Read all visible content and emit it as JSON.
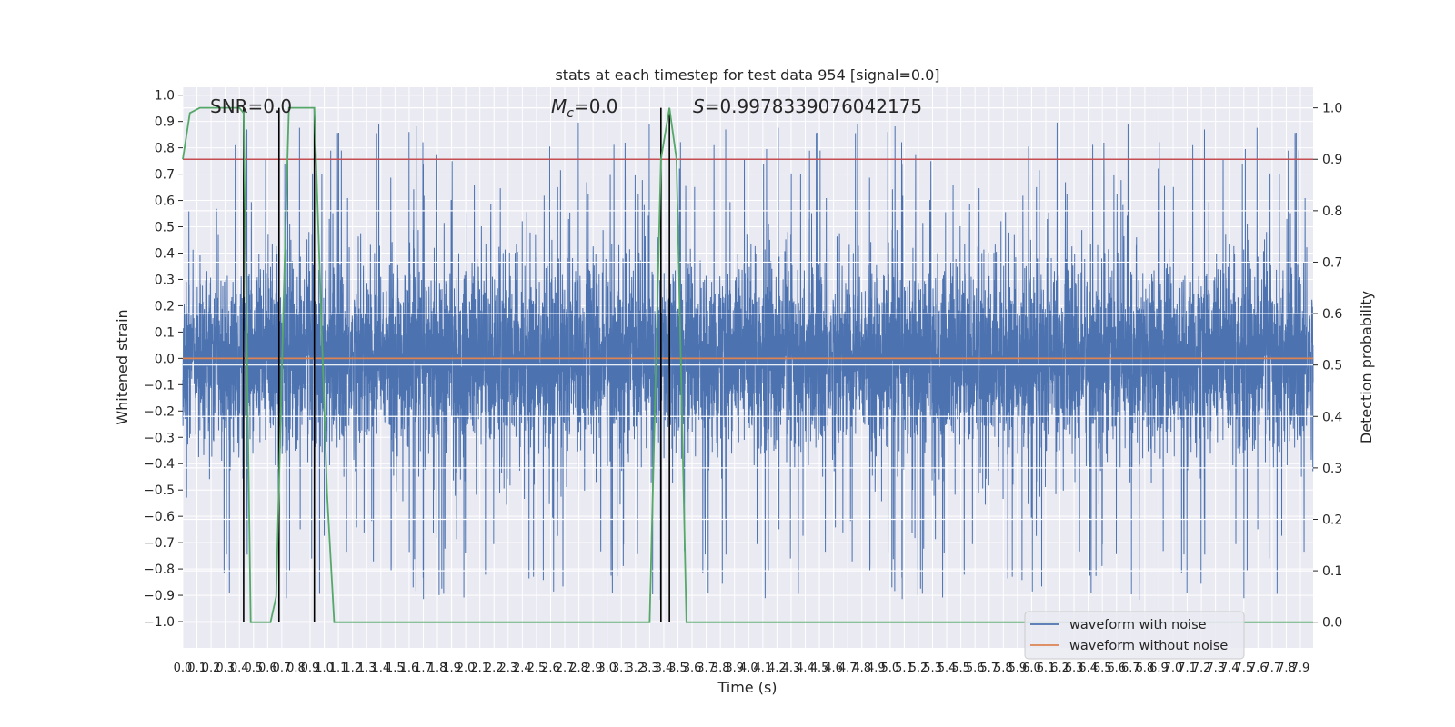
{
  "chart_data": {
    "type": "line",
    "title": "stats at each timestep for test data 954 [signal=0.0]",
    "xlabel": "Time (s)",
    "ylabel": "Whitened strain",
    "ylabel_right": "Detection probability",
    "xlim": [
      0.0,
      7.99
    ],
    "ylim": [
      -1.1,
      1.03
    ],
    "ylim_right": [
      -0.05,
      1.04
    ],
    "x_ticks": [
      0.0,
      0.1,
      0.2,
      0.3,
      0.4,
      0.5,
      0.6,
      0.7,
      0.8,
      0.9,
      1.0,
      1.1,
      1.2,
      1.3,
      1.4,
      1.5,
      1.6,
      1.7,
      1.8,
      1.9,
      2.0,
      2.1,
      2.2,
      2.3,
      2.4,
      2.5,
      2.6,
      2.7,
      2.8,
      2.9,
      3.0,
      3.1,
      3.2,
      3.3,
      3.4,
      3.5,
      3.6,
      3.7,
      3.8,
      3.9,
      4.0,
      4.1,
      4.2,
      4.3,
      4.4,
      4.5,
      4.6,
      4.7,
      4.8,
      4.9,
      5.0,
      5.1,
      5.2,
      5.3,
      5.4,
      5.5,
      5.6,
      5.7,
      5.8,
      5.9,
      6.0,
      6.1,
      6.2,
      6.3,
      6.4,
      6.5,
      6.6,
      6.7,
      6.8,
      6.9,
      7.0,
      7.1,
      7.2,
      7.3,
      7.4,
      7.5,
      7.6,
      7.7,
      7.8,
      7.9
    ],
    "x_tick_labels": [
      "0.0",
      "0.1",
      "0.2",
      "0.3",
      "0.4",
      "0.5",
      "0.6",
      "0.7",
      "0.8",
      "0.9",
      "1.0",
      "1.1",
      "1.2",
      "1.3",
      "1.4",
      "1.5",
      "1.6",
      "1.7",
      "1.8",
      "1.9",
      "2.0",
      "2.1",
      "2.2",
      "2.3",
      "2.4",
      "2.5",
      "2.6",
      "2.7",
      "2.8",
      "2.9",
      "3.0",
      "3.1",
      "3.2",
      "3.3",
      "3.4",
      "3.5",
      "3.6",
      "3.7",
      "3.8",
      "3.9",
      "4.0",
      "4.1",
      "4.2",
      "4.3",
      "4.4",
      "4.5",
      "4.6",
      "4.7",
      "4.8",
      "4.9",
      "5.0",
      "5.1",
      "5.2",
      "5.3",
      "5.4",
      "5.5",
      "5.6",
      "5.7",
      "5.8",
      "5.9",
      "6.0",
      "6.1",
      "6.2",
      "6.3",
      "6.4",
      "6.5",
      "6.6",
      "6.7",
      "6.8",
      "6.9",
      "7.0",
      "7.1",
      "7.2",
      "7.3",
      "7.4",
      "7.5",
      "7.6",
      "7.7",
      "7.8",
      "7.9"
    ],
    "y_ticks": [
      1.0,
      0.9,
      0.8,
      0.7,
      0.6,
      0.5,
      0.4,
      0.3,
      0.2,
      0.1,
      0.0,
      -0.1,
      -0.2,
      -0.3,
      -0.4,
      -0.5,
      -0.6,
      -0.7,
      -0.8,
      -0.9,
      -1.0
    ],
    "y_tick_labels": [
      "1.0",
      "0.9",
      "0.8",
      "0.7",
      "0.6",
      "0.5",
      "0.4",
      "0.3",
      "0.2",
      "0.1",
      "0.0",
      "−0.1",
      "−0.2",
      "−0.3",
      "−0.4",
      "−0.5",
      "−0.6",
      "−0.7",
      "−0.8",
      "−0.9",
      "−1.0"
    ],
    "y_ticks_right": [
      1.0,
      0.9,
      0.8,
      0.7,
      0.6,
      0.5,
      0.4,
      0.3,
      0.2,
      0.1,
      0.0
    ],
    "y_tick_labels_right": [
      "1.0",
      "0.9",
      "0.8",
      "0.7",
      "0.6",
      "0.5",
      "0.4",
      "0.3",
      "0.2",
      "0.1",
      "0.0"
    ],
    "grid": true,
    "legend_placement": "lower right",
    "annotations": {
      "snr": "SNR=0.0",
      "mc_symbol": "M",
      "mc_sub": "c",
      "mc_value": "=0.0",
      "s_symbol": "S",
      "s_value": "=0.9978339076042175"
    },
    "threshold_right": 0.9,
    "event_markers_x": [
      0.43,
      0.68,
      0.93,
      3.38,
      3.44
    ],
    "series": [
      {
        "name": "waveform with noise",
        "color": "#4c72b0",
        "axis": "left",
        "sample_count": 8000,
        "envelope_typical": 0.4,
        "peak_max": 0.92,
        "trough_min": -0.97,
        "x_range": [
          0.0,
          7.99
        ]
      },
      {
        "name": "waveform without noise",
        "color": "#dd8452",
        "axis": "left",
        "x": [
          0.0,
          7.99
        ],
        "y": [
          0.0,
          0.0
        ]
      },
      {
        "color": "#55a868",
        "axis": "right",
        "x": [
          0.0,
          0.05,
          0.12,
          0.4,
          0.43,
          0.48,
          0.56,
          0.62,
          0.66,
          0.71,
          0.75,
          0.93,
          1.02,
          1.07,
          3.3,
          3.38,
          3.44,
          3.49,
          3.56,
          7.99
        ],
        "y": [
          0.9,
          0.99,
          1.0,
          1.0,
          0.99,
          0.0,
          0.0,
          0.0,
          0.05,
          0.6,
          1.0,
          1.0,
          0.25,
          0.0,
          0.0,
          0.9,
          1.0,
          0.9,
          0.0,
          0.0
        ]
      }
    ],
    "colors": {
      "plot_background": "#eaeaf2",
      "grid": "#ffffff",
      "threshold_line": "#c44e52",
      "event_marker": "#000000"
    }
  }
}
